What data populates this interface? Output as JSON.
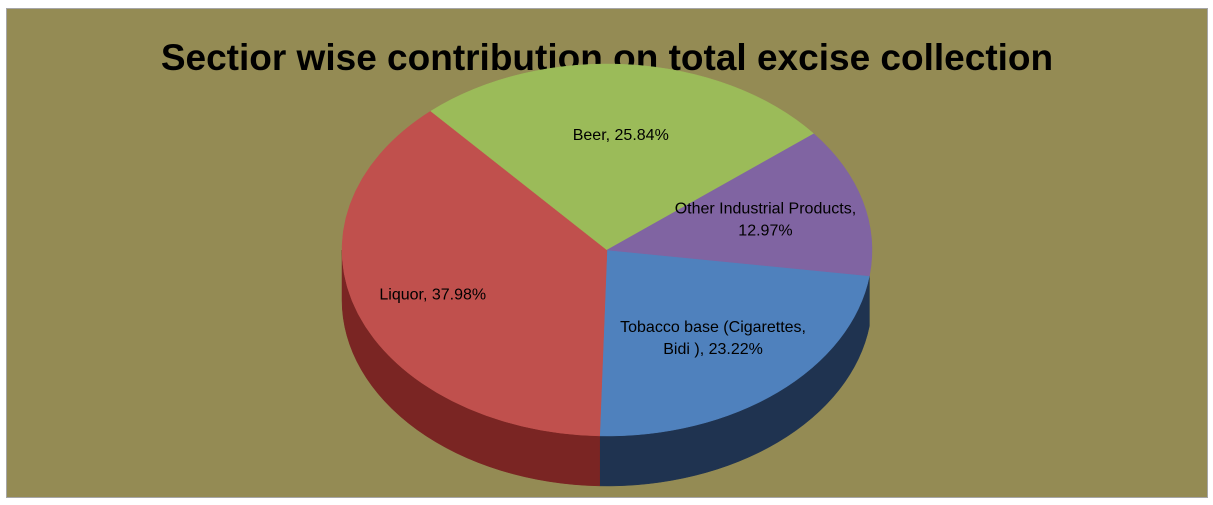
{
  "background_color": "#948b54",
  "chart_data": {
    "type": "pie",
    "style": "3d",
    "title": "Sectior wise contribution on total excise collection",
    "legend": "none",
    "slices": [
      {
        "name": "Tobacco base (Cigarettes, Bidi )",
        "value": 23.22,
        "label_lines": [
          "Tobacco base (Cigarettes,",
          "Bidi ), 23.22%"
        ],
        "color": "#4f81bd",
        "side_color": "#1f3350"
      },
      {
        "name": "Liquor",
        "value": 37.98,
        "label_lines": [
          "Liquor, 37.98%"
        ],
        "color": "#c0504d",
        "side_color": "#7a2523"
      },
      {
        "name": "Beer",
        "value": 25.84,
        "label_lines": [
          "Beer, 25.84%"
        ],
        "color": "#9bbb59",
        "side_color": "#5a7232"
      },
      {
        "name": "Other Industrial Products",
        "value": 12.97,
        "label_lines": [
          "Other Industrial Products,",
          "12.97%"
        ],
        "color": "#8064a2",
        "side_color": "#4a3a60"
      }
    ]
  }
}
